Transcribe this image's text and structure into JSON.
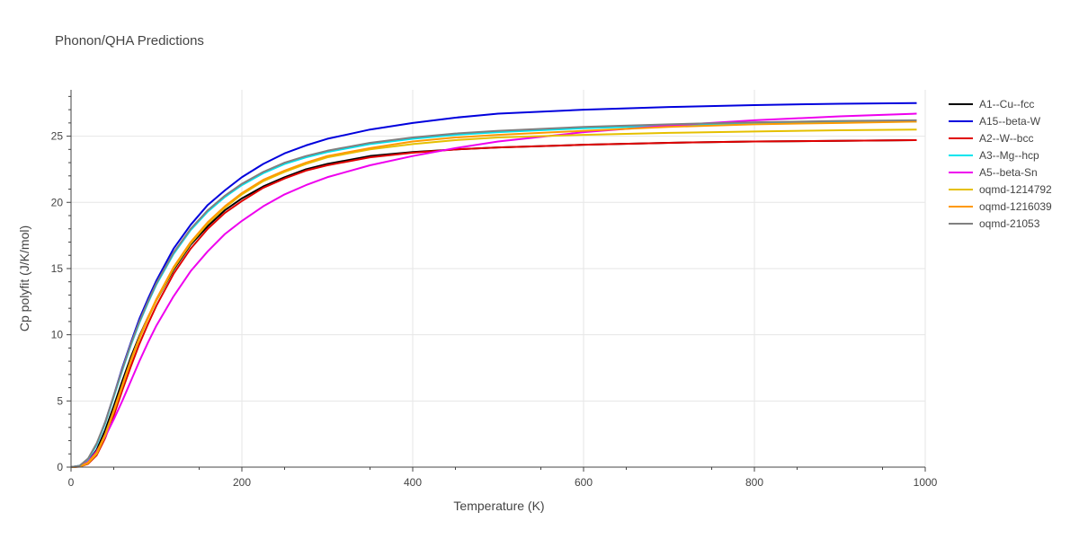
{
  "chart_data": {
    "type": "line",
    "title": "Phonon/QHA Predictions",
    "xlabel": "Temperature (K)",
    "ylabel": "Cp polyfit (J/K/mol)",
    "xlim": [
      0,
      1000
    ],
    "ylim": [
      0,
      28.5
    ],
    "x_ticks": [
      0,
      200,
      400,
      600,
      800,
      1000
    ],
    "y_ticks": [
      0,
      5,
      10,
      15,
      20,
      25
    ],
    "grid": true,
    "legend_position": "right",
    "x": [
      0,
      10,
      20,
      30,
      40,
      50,
      60,
      70,
      80,
      90,
      100,
      120,
      140,
      160,
      180,
      200,
      225,
      250,
      275,
      300,
      350,
      400,
      450,
      500,
      600,
      700,
      800,
      900,
      990
    ],
    "series": [
      {
        "name": "A1--Cu--fcc",
        "color": "#000000",
        "values": [
          0,
          0.05,
          0.4,
          1.3,
          2.8,
          4.6,
          6.5,
          8.3,
          9.9,
          11.3,
          12.6,
          14.9,
          16.8,
          18.2,
          19.4,
          20.3,
          21.2,
          21.9,
          22.5,
          22.9,
          23.5,
          23.8,
          24.0,
          24.15,
          24.35,
          24.5,
          24.6,
          24.65,
          24.7
        ]
      },
      {
        "name": "A15--beta-W",
        "color": "#0000dd",
        "values": [
          0,
          0.1,
          0.6,
          1.7,
          3.4,
          5.4,
          7.5,
          9.4,
          11.2,
          12.7,
          14.1,
          16.5,
          18.3,
          19.8,
          20.9,
          21.9,
          22.9,
          23.7,
          24.3,
          24.8,
          25.5,
          26.0,
          26.4,
          26.7,
          27.0,
          27.2,
          27.35,
          27.45,
          27.5
        ]
      },
      {
        "name": "A2--W--bcc",
        "color": "#e00000",
        "values": [
          0,
          0.03,
          0.25,
          0.9,
          2.2,
          3.9,
          5.8,
          7.6,
          9.3,
          10.8,
          12.2,
          14.6,
          16.5,
          18.0,
          19.2,
          20.1,
          21.1,
          21.8,
          22.4,
          22.8,
          23.4,
          23.75,
          24.0,
          24.15,
          24.35,
          24.5,
          24.6,
          24.65,
          24.7
        ]
      },
      {
        "name": "A3--Mg--hcp",
        "color": "#00e5ee",
        "values": [
          0,
          0.1,
          0.6,
          1.7,
          3.3,
          5.3,
          7.3,
          9.2,
          10.9,
          12.4,
          13.8,
          16.1,
          17.9,
          19.3,
          20.4,
          21.3,
          22.2,
          22.9,
          23.4,
          23.8,
          24.4,
          24.8,
          25.1,
          25.3,
          25.6,
          25.8,
          25.95,
          26.05,
          26.1
        ]
      },
      {
        "name": "A5--beta-Sn",
        "color": "#ee00ee",
        "values": [
          0,
          0.05,
          0.4,
          1.2,
          2.3,
          3.6,
          5.0,
          6.5,
          8.0,
          9.4,
          10.7,
          12.9,
          14.8,
          16.3,
          17.6,
          18.6,
          19.7,
          20.6,
          21.3,
          21.9,
          22.8,
          23.5,
          24.1,
          24.6,
          25.3,
          25.8,
          26.2,
          26.5,
          26.7
        ]
      },
      {
        "name": "oqmd-1214792",
        "color": "#e5c000",
        "values": [
          0,
          0.04,
          0.3,
          1.0,
          2.4,
          4.2,
          6.1,
          8.0,
          9.7,
          11.2,
          12.6,
          15.0,
          16.9,
          18.4,
          19.6,
          20.6,
          21.6,
          22.3,
          22.9,
          23.4,
          24.0,
          24.4,
          24.7,
          24.9,
          25.1,
          25.25,
          25.35,
          25.45,
          25.5
        ]
      },
      {
        "name": "oqmd-1216039",
        "color": "#ff9900",
        "values": [
          0,
          0.04,
          0.35,
          1.1,
          2.5,
          4.3,
          6.2,
          8.1,
          9.8,
          11.3,
          12.7,
          15.1,
          17.0,
          18.5,
          19.7,
          20.7,
          21.7,
          22.4,
          23.0,
          23.5,
          24.1,
          24.6,
          24.9,
          25.1,
          25.4,
          25.7,
          25.9,
          26.0,
          26.1
        ]
      },
      {
        "name": "oqmd-21053",
        "color": "#808080",
        "values": [
          0,
          0.1,
          0.65,
          1.8,
          3.4,
          5.4,
          7.4,
          9.3,
          11.0,
          12.5,
          13.9,
          16.2,
          18.0,
          19.4,
          20.5,
          21.4,
          22.3,
          23.0,
          23.5,
          23.9,
          24.5,
          24.9,
          25.2,
          25.4,
          25.7,
          25.9,
          26.05,
          26.15,
          26.2
        ]
      }
    ]
  }
}
